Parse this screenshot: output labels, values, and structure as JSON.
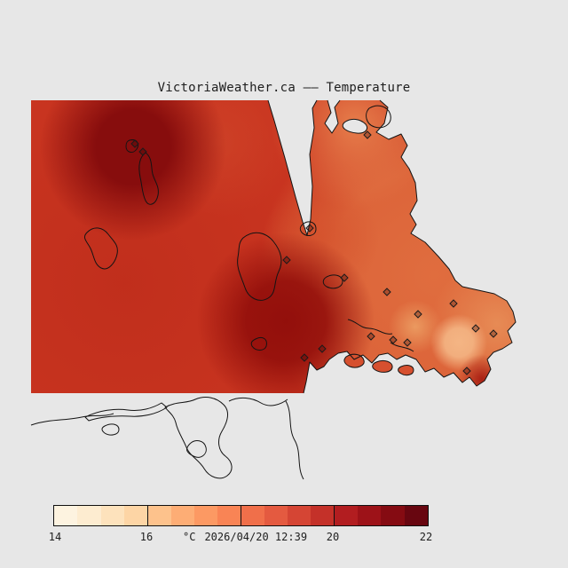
{
  "page": {
    "background": "#e7e7e7",
    "title": "VictoriaWeather.ca —— Temperature"
  },
  "map": {
    "colors": {
      "base": "#c93520",
      "water_gray": "#e7e7e7",
      "coastline": "#141414",
      "islet": "#d6502f"
    },
    "gradients": [
      {
        "id": "g1",
        "color": "#870d0d"
      },
      {
        "id": "g2",
        "color": "#bb2a1a"
      },
      {
        "id": "g3",
        "color": "#930f0b"
      },
      {
        "id": "g4",
        "color": "#e17040"
      },
      {
        "id": "g5",
        "color": "#e8814d"
      },
      {
        "id": "g6",
        "color": "#e88f58"
      },
      {
        "id": "g7",
        "color": "#f4b584"
      },
      {
        "id": "g8",
        "color": "#d4512c"
      },
      {
        "id": "g9",
        "color": "#a3180f"
      },
      {
        "id": "g10",
        "color": "#eda266"
      },
      {
        "id": "g11",
        "color": "#d24a2c"
      }
    ],
    "stations": [
      [
        152,
        162
      ],
      [
        161,
        171
      ],
      [
        414,
        152
      ],
      [
        349,
        257
      ],
      [
        323,
        293
      ],
      [
        388,
        313
      ],
      [
        436,
        329
      ],
      [
        471,
        354
      ],
      [
        511,
        342
      ],
      [
        536,
        370
      ],
      [
        556,
        376
      ],
      [
        418,
        379
      ],
      [
        443,
        383
      ],
      [
        459,
        386
      ],
      [
        363,
        393
      ],
      [
        343,
        403
      ],
      [
        526,
        418
      ]
    ]
  },
  "colorbar": {
    "min": 14,
    "max": 22,
    "unit": "°C",
    "timestamp": "2026/04/20 12:39",
    "ticks": [
      "14",
      "16",
      "20",
      "22"
    ],
    "colors": [
      "#fdf3e0",
      "#fdecd0",
      "#fde2bc",
      "#fdd5a5",
      "#fdc28c",
      "#fdad75",
      "#fc9963",
      "#f98455",
      "#f06f4a",
      "#e45a40",
      "#d54534",
      "#c43129",
      "#b21d20",
      "#9d1218",
      "#850b12",
      "#680610"
    ]
  }
}
